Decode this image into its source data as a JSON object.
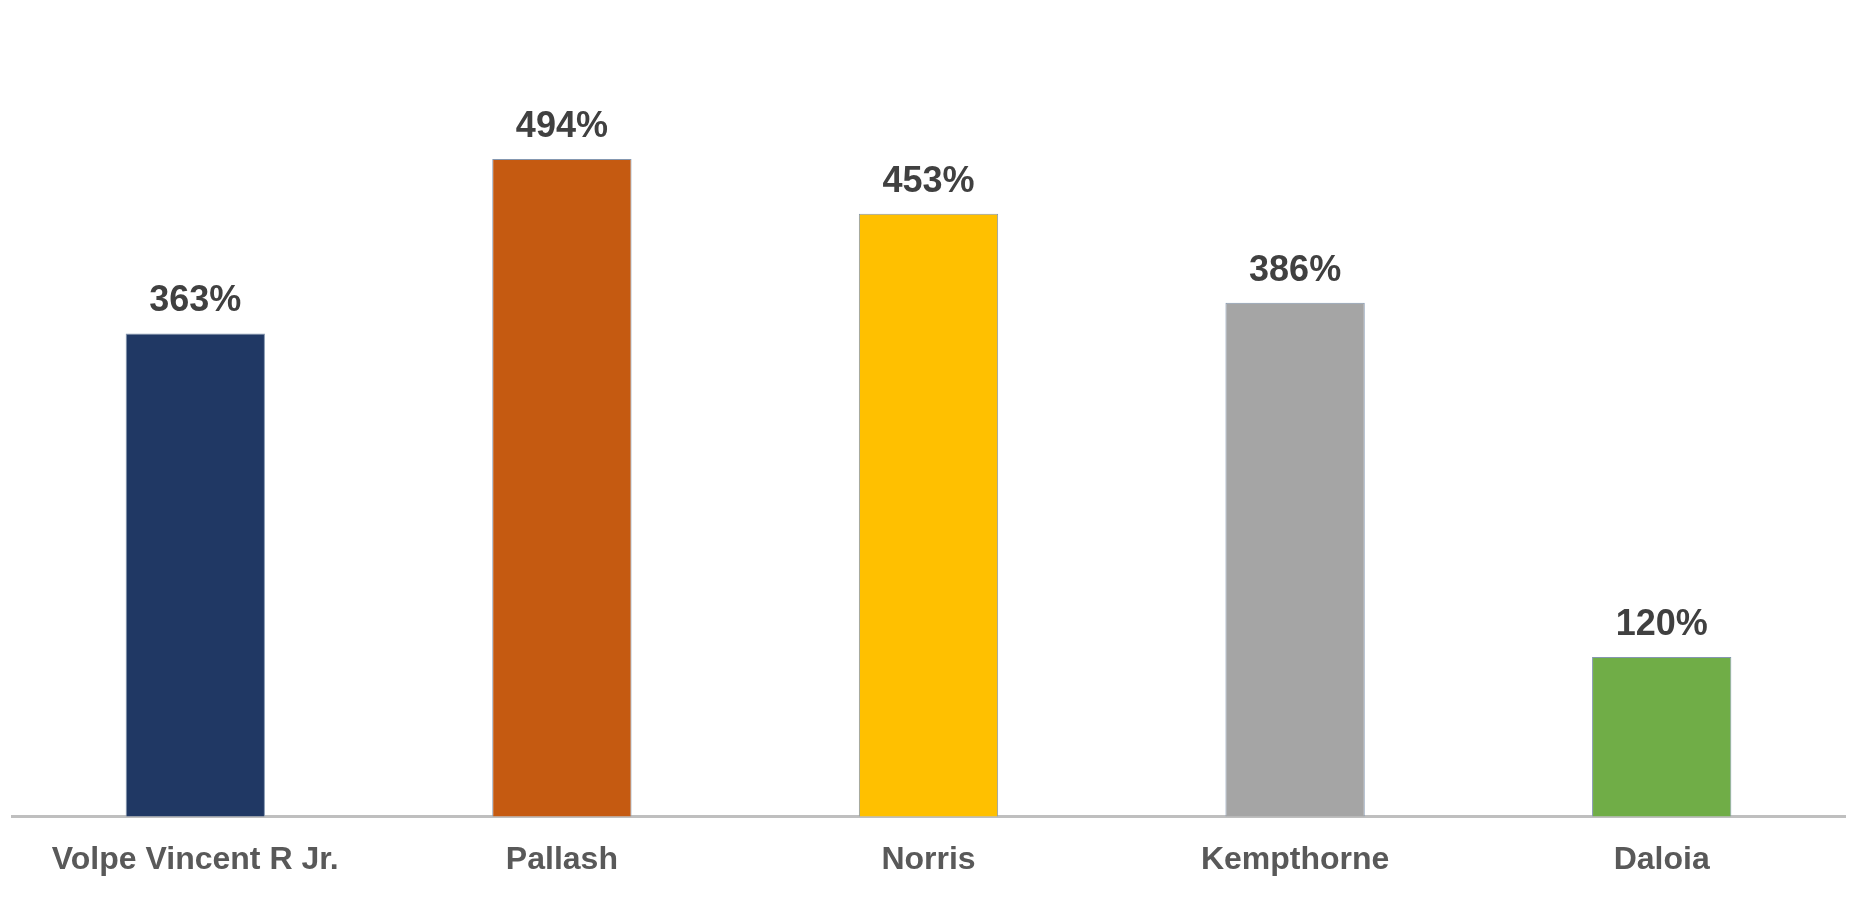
{
  "chart_data": {
    "type": "bar",
    "categories": [
      "Volpe Vincent R Jr.",
      "Pallash",
      "Norris",
      "Kempthorne",
      "Daloia"
    ],
    "values": [
      363,
      494,
      453,
      386,
      120
    ],
    "colors": [
      "#203864",
      "#c55a11",
      "#ffc000",
      "#a5a5a5",
      "#70ad47"
    ],
    "value_labels": [
      "363%",
      "494%",
      "453%",
      "386%",
      "120%"
    ],
    "grid": false,
    "legend": false
  }
}
